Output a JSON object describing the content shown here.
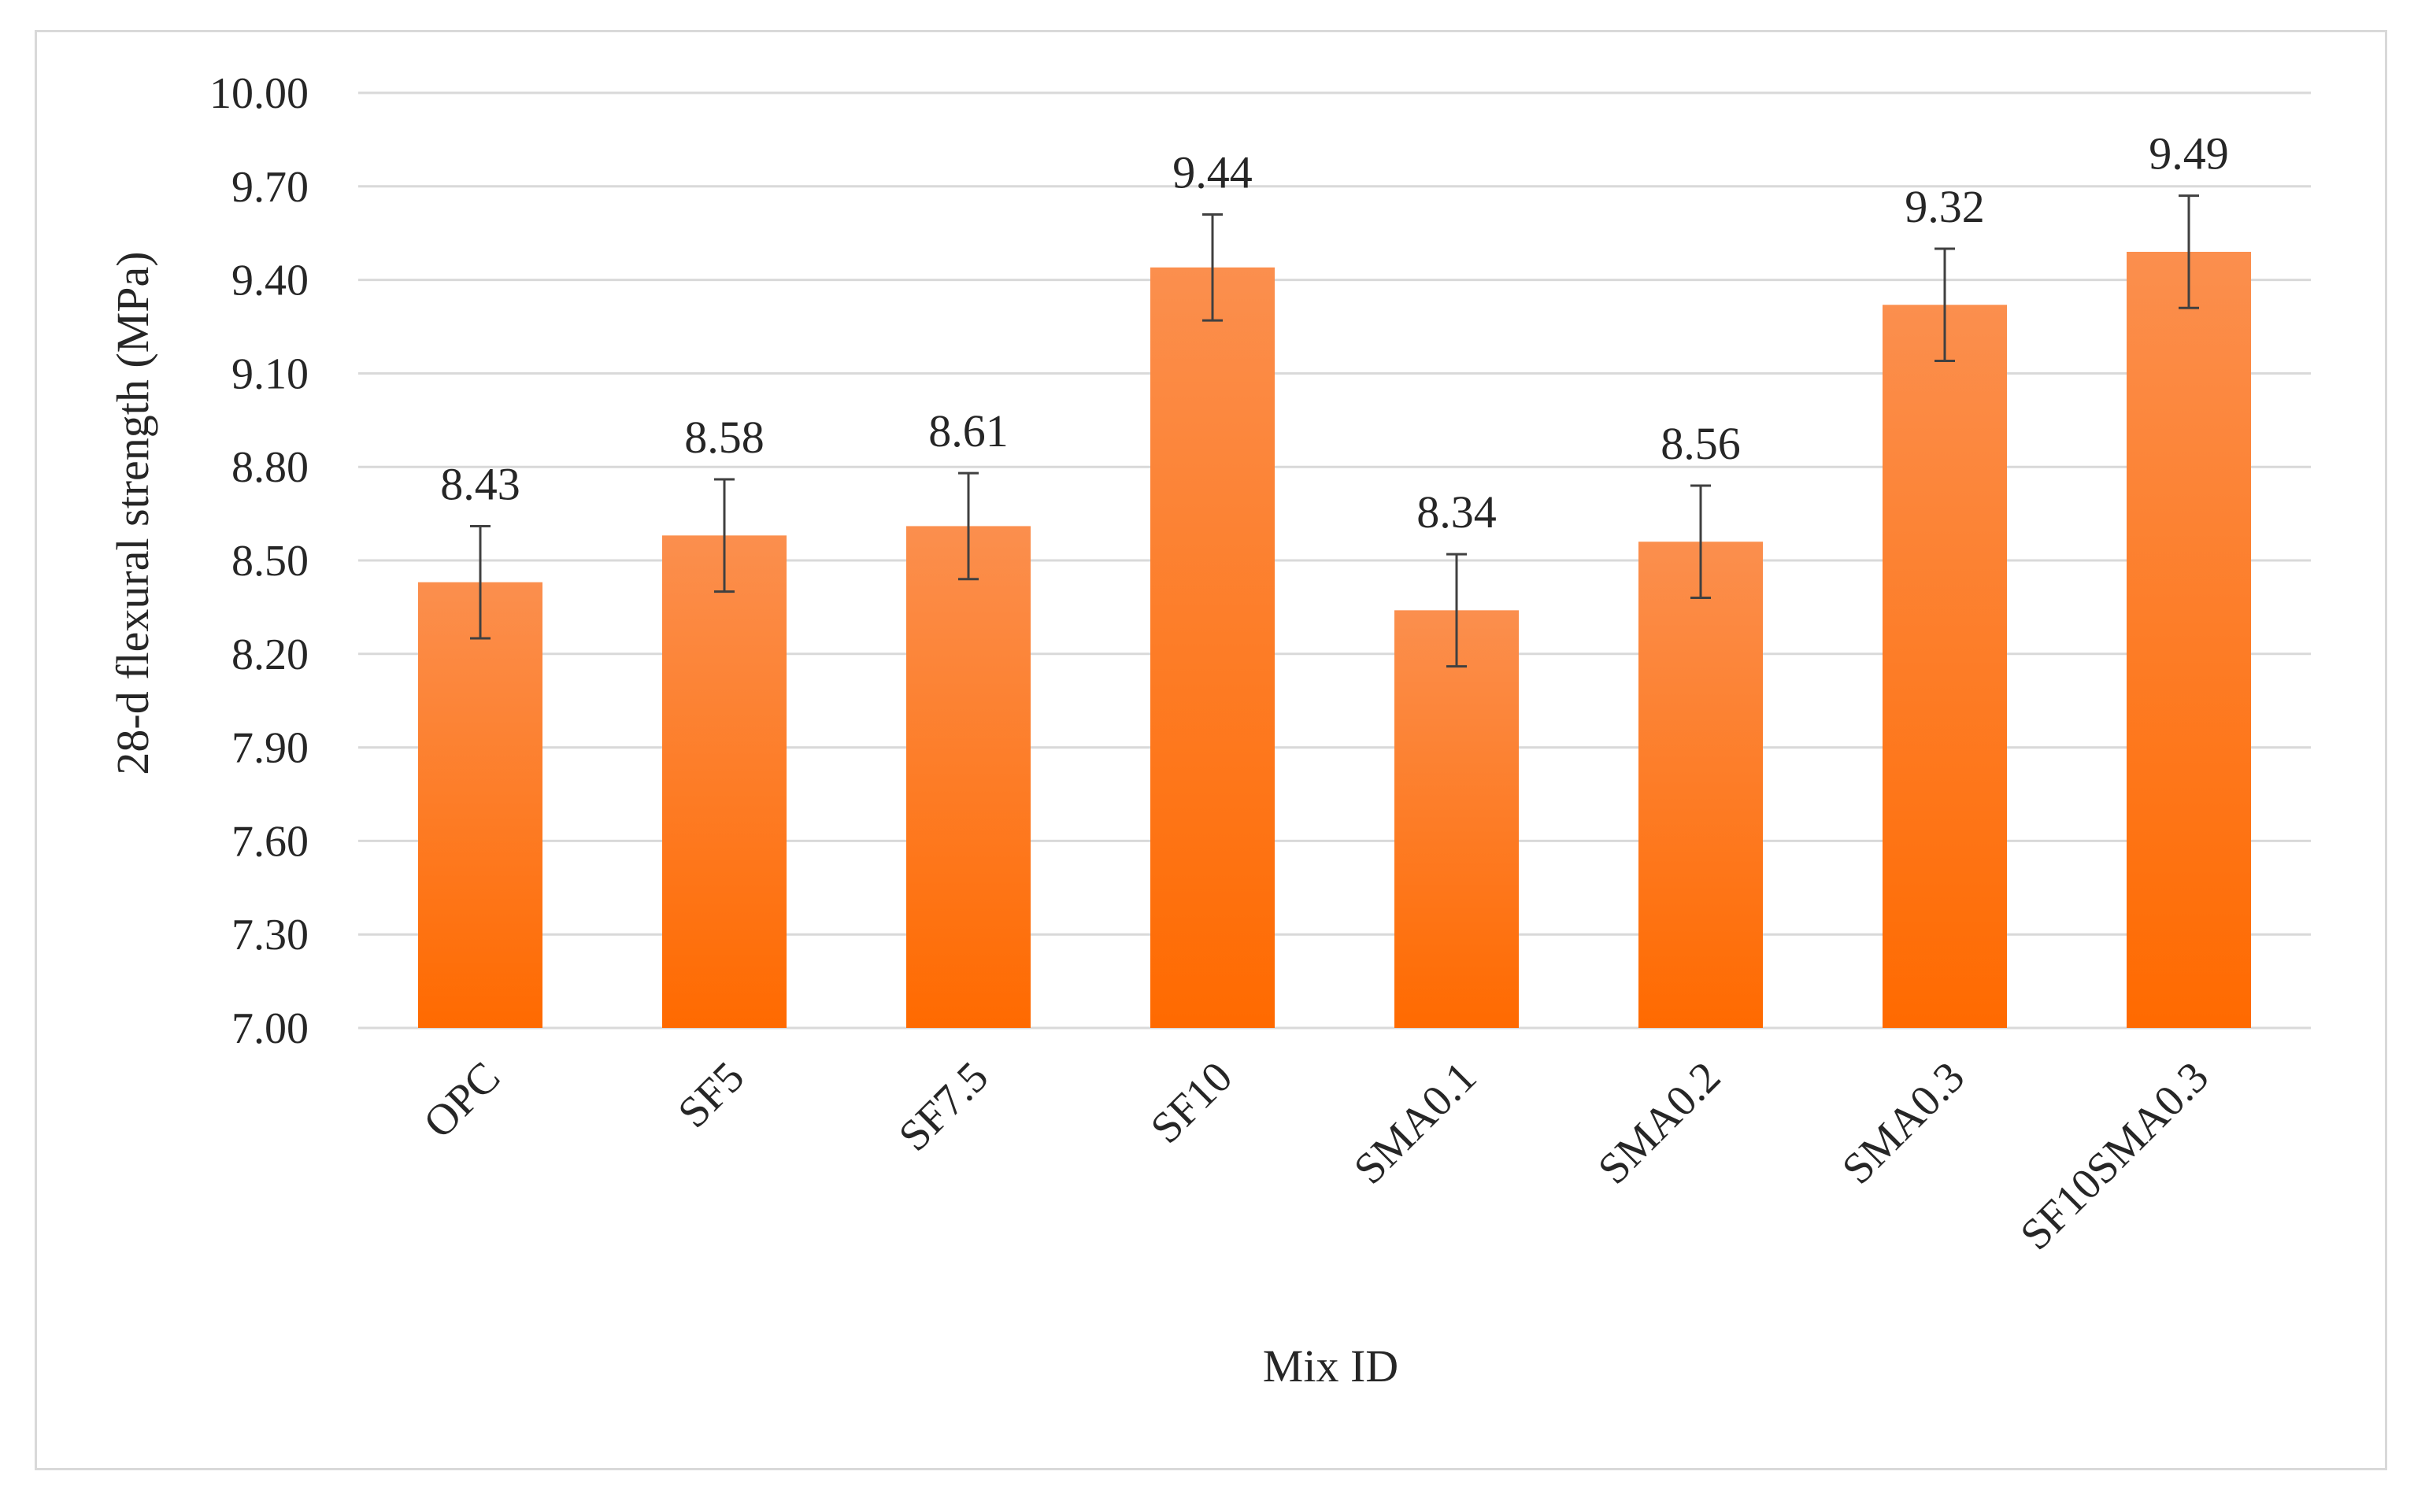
{
  "chart_data": {
    "type": "bar",
    "title": "",
    "xlabel": "Mix ID",
    "ylabel": "28-d flexural strength (MPa)",
    "categories": [
      "OPC",
      "SF5",
      "SF7.5",
      "SF10",
      "SMA0.1",
      "SMA0.2",
      "SMA0.3",
      "SF10SMA0.3"
    ],
    "values": [
      8.43,
      8.58,
      8.61,
      9.44,
      8.34,
      8.56,
      9.32,
      9.49
    ],
    "value_labels": [
      "8.43",
      "8.58",
      "8.61",
      "9.44",
      "8.34",
      "8.56",
      "9.32",
      "9.49"
    ],
    "error": [
      0.18,
      0.18,
      0.17,
      0.17,
      0.18,
      0.18,
      0.18,
      0.18
    ],
    "ylim": [
      7.0,
      10.0
    ],
    "yticks": [
      "7.00",
      "7.30",
      "7.60",
      "7.90",
      "8.20",
      "8.50",
      "8.80",
      "9.10",
      "9.40",
      "9.70",
      "10.00"
    ],
    "grid": true,
    "legend": "none",
    "colors": {
      "bar_top": "#fb8f4e",
      "bar_bottom": "#ff6a00",
      "grid": "#d9d9d9",
      "text": "#262626",
      "error_bar": "#404040"
    }
  }
}
